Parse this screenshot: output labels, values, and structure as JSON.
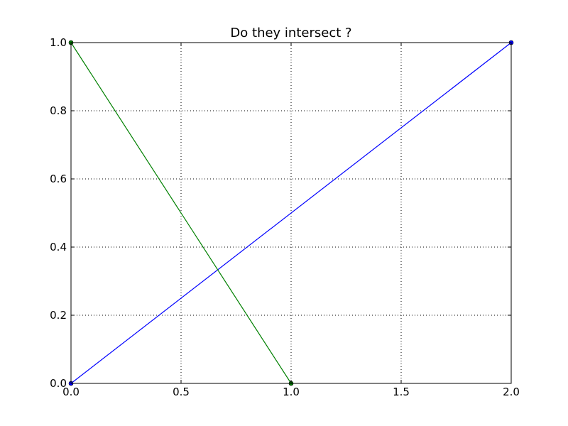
{
  "chart_data": {
    "type": "line",
    "title": "Do they intersect ?",
    "xlabel": "",
    "ylabel": "",
    "xlim": [
      0.0,
      2.0
    ],
    "ylim": [
      0.0,
      1.0
    ],
    "x_ticks": [
      0.0,
      0.5,
      1.0,
      1.5,
      2.0
    ],
    "x_tick_labels": [
      "0.0",
      "0.5",
      "1.0",
      "1.5",
      "2.0"
    ],
    "y_ticks": [
      0.0,
      0.2,
      0.4,
      0.6,
      0.8,
      1.0
    ],
    "y_tick_labels": [
      "0.0",
      "0.2",
      "0.4",
      "0.6",
      "0.8",
      "1.0"
    ],
    "grid": true,
    "legend": null,
    "series": [
      {
        "color": "#0000ff",
        "points": [
          [
            0.0,
            0.0
          ],
          [
            2.0,
            1.0
          ]
        ],
        "markers": true
      },
      {
        "color": "#008000",
        "points": [
          [
            0.0,
            1.0
          ],
          [
            1.0,
            0.0
          ]
        ],
        "markers": true
      }
    ]
  }
}
